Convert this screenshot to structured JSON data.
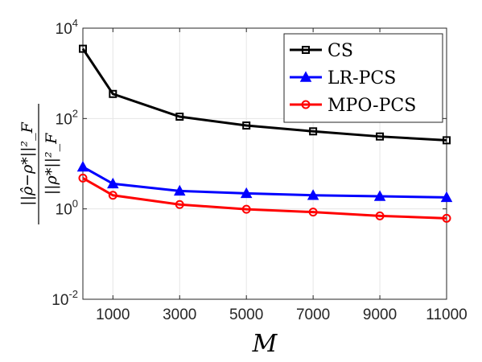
{
  "chart_data": {
    "type": "line",
    "xlabel": "M",
    "ylabel": "||ρ̂−ρ*||²_F / ||ρ*||²_F",
    "yscale": "log",
    "xlim": [
      100,
      11000
    ],
    "ylim": [
      0.01,
      10000
    ],
    "x_ticks": [
      1000,
      3000,
      5000,
      7000,
      9000,
      11000
    ],
    "x_tick_labels": [
      "1000",
      "3000",
      "5000",
      "7000",
      "9000",
      "11000"
    ],
    "y_ticks": [
      0.01,
      1,
      100,
      10000
    ],
    "y_tick_labels": [
      {
        "base": "10",
        "exp": "-2"
      },
      {
        "base": "10",
        "exp": "0"
      },
      {
        "base": "10",
        "exp": "2"
      },
      {
        "base": "10",
        "exp": "4"
      }
    ],
    "grid": true,
    "legend_position": "top-right",
    "x": [
      100,
      1000,
      3000,
      5000,
      7000,
      9000,
      11000
    ],
    "series": [
      {
        "name": "CS",
        "color": "#000000",
        "marker": "square",
        "values": [
          3500,
          350,
          110,
          70,
          52,
          40,
          33
        ]
      },
      {
        "name": "LR-PCS",
        "color": "#0000ff",
        "marker": "triangle",
        "values": [
          8.5,
          3.6,
          2.5,
          2.2,
          2.0,
          1.9,
          1.8
        ]
      },
      {
        "name": "MPO-PCS",
        "color": "#ff0000",
        "marker": "circle",
        "values": [
          4.8,
          2.0,
          1.25,
          0.98,
          0.85,
          0.7,
          0.62
        ]
      }
    ]
  }
}
